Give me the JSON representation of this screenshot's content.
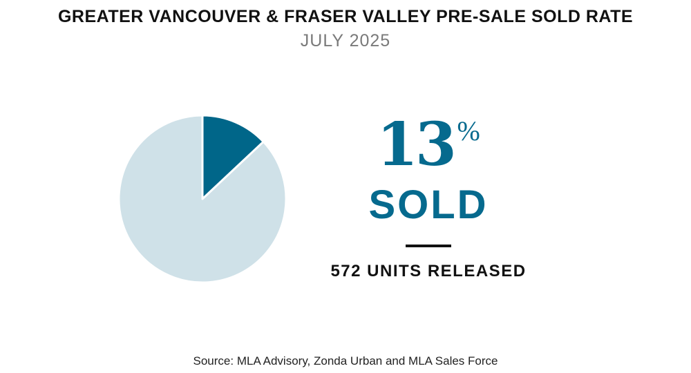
{
  "title": "GREATER VANCOUVER & FRASER VALLEY PRE-SALE SOLD RATE",
  "subtitle": "JULY 2025",
  "stat": {
    "value": "13",
    "suffix": "%",
    "label": "SOLD",
    "units_number": "572",
    "units_label": "UNITS RELEASED"
  },
  "source": "Source: MLA Advisory, Zonda Urban and MLA Sales Force",
  "colors": {
    "sold": "#006689",
    "unsold": "#cfe1e8",
    "accent": "#066a8e"
  },
  "chart_data": {
    "type": "pie",
    "title": "GREATER VANCOUVER & FRASER VALLEY PRE-SALE SOLD RATE",
    "subtitle": "JULY 2025",
    "slices": [
      {
        "name": "Sold",
        "value": 13,
        "color": "#006689"
      },
      {
        "name": "Unsold",
        "value": 87,
        "color": "#cfe1e8"
      }
    ]
  }
}
